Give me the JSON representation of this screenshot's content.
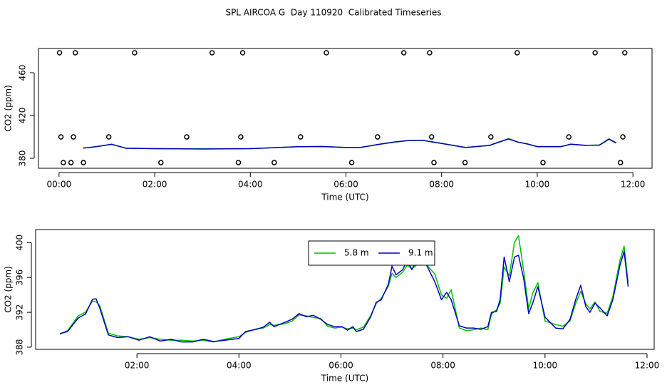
{
  "title": "SPL AIRCOA G  Day 110920  Calibrated Timeseries",
  "chart_data": [
    {
      "type": "line",
      "xlabel": "Time (UTC)",
      "ylabel": "CO2 (ppm)",
      "xlim": [
        -0.43,
        12.4
      ],
      "ylim": [
        370.7,
        482.7
      ],
      "xticks": [
        {
          "value": 0,
          "label": "00:00"
        },
        {
          "value": 2,
          "label": "02:00"
        },
        {
          "value": 4,
          "label": "04:00"
        },
        {
          "value": 6,
          "label": "06:00"
        },
        {
          "value": 8,
          "label": "08:00"
        },
        {
          "value": 10,
          "label": "10:00"
        },
        {
          "value": 12,
          "label": "12:00"
        }
      ],
      "yticks": [
        380,
        420,
        460
      ],
      "series": [
        {
          "style": "points",
          "color": "#000000",
          "x": [
            0.01,
            0.34,
            1.58,
            3.2,
            3.84,
            5.59,
            7.21,
            7.75,
            9.58,
            11.21,
            11.83,
            0.04,
            0.3,
            1.04,
            2.67,
            3.8,
            5.05,
            6.66,
            7.79,
            9.03,
            10.66,
            11.79,
            0.09,
            0.25,
            0.51,
            2.13,
            3.75,
            4.5,
            6.12,
            7.84,
            8.49,
            10.12,
            11.74
          ],
          "values": [
            478.7,
            478.7,
            478.7,
            478.7,
            478.7,
            478.7,
            478.7,
            478.7,
            478.7,
            478.7,
            478.7,
            400,
            400,
            400,
            400,
            400,
            400,
            400,
            400,
            400,
            400,
            400,
            376,
            376,
            376,
            376,
            376,
            376,
            376,
            376,
            376,
            376,
            376
          ]
        },
        {
          "style": "line",
          "color": "#00c000",
          "x": [
            0.5,
            0.8,
            1.1,
            1.4,
            2,
            3,
            4,
            5,
            5.5,
            6,
            6.3,
            6.7,
            7,
            7.3,
            7.6,
            8,
            8.5,
            9,
            9.2,
            9.4,
            9.6,
            9.8,
            10,
            10.5,
            10.7,
            11,
            11.3,
            11.5,
            11.65
          ],
          "values": [
            389.5,
            391,
            393,
            389.5,
            389,
            388.8,
            389,
            390.8,
            391,
            390.2,
            390.2,
            393,
            395,
            396.5,
            396.8,
            394,
            390.2,
            392,
            395,
            398.5,
            395,
            393.5,
            391,
            391,
            393,
            392,
            392.5,
            398.3,
            394.5
          ]
        },
        {
          "style": "line",
          "color": "#0000c0",
          "x": [
            0.5,
            0.8,
            1.1,
            1.4,
            2,
            3,
            4,
            5,
            5.5,
            6,
            6.3,
            6.7,
            7,
            7.3,
            7.6,
            8,
            8.5,
            9,
            9.2,
            9.4,
            9.6,
            9.8,
            10,
            10.5,
            10.7,
            11,
            11.3,
            11.5,
            11.65
          ],
          "values": [
            389.5,
            391,
            393.2,
            389.4,
            389,
            388.7,
            389,
            390.9,
            391,
            390.1,
            390.1,
            393.2,
            395.2,
            396.6,
            396.9,
            393.8,
            390.1,
            392,
            395.3,
            398,
            395.2,
            393.3,
            390.9,
            390.9,
            393.3,
            392.2,
            392.3,
            397.8,
            394.3
          ]
        }
      ]
    },
    {
      "type": "line",
      "xlabel": "Time (UTC)",
      "ylabel": "CO2 (ppm)",
      "xlim": [
        0.014,
        12.14
      ],
      "ylim": [
        387.75,
        401.5
      ],
      "xticks": [
        {
          "value": 2,
          "label": "02:00"
        },
        {
          "value": 4,
          "label": "04:00"
        },
        {
          "value": 6,
          "label": "06:00"
        },
        {
          "value": 8,
          "label": "08:00"
        },
        {
          "value": 10,
          "label": "10:00"
        },
        {
          "value": 12,
          "label": "12:00"
        }
      ],
      "yticks": [
        388,
        392,
        396,
        400
      ],
      "legend": "top-center",
      "series": [
        {
          "name": "5.8 m",
          "style": "line",
          "color": "#00c000",
          "x": [
            0.49,
            0.64,
            0.85,
            0.99,
            1.13,
            1.2,
            1.27,
            1.44,
            1.62,
            1.83,
            2.04,
            2.25,
            2.46,
            2.67,
            2.88,
            3.09,
            3.3,
            3.5,
            3.72,
            4.0,
            4.13,
            4.34,
            4.48,
            4.6,
            4.69,
            4.9,
            5.04,
            5.18,
            5.32,
            5.46,
            5.6,
            5.74,
            5.88,
            6.02,
            6.13,
            6.23,
            6.3,
            6.44,
            6.58,
            6.69,
            6.79,
            6.93,
            7.0,
            7.08,
            7.21,
            7.3,
            7.39,
            7.56,
            7.7,
            7.84,
            7.97,
            8.07,
            8.16,
            8.32,
            8.46,
            8.6,
            8.74,
            8.88,
            8.95,
            9.05,
            9.12,
            9.2,
            9.3,
            9.4,
            9.48,
            9.58,
            9.68,
            9.76,
            9.86,
            10.0,
            10.21,
            10.35,
            10.49,
            10.6,
            10.7,
            10.8,
            10.88,
            10.98,
            11.08,
            11.22,
            11.33,
            11.47,
            11.55,
            11.63
          ],
          "values": [
            389.5,
            389.9,
            391.6,
            392.0,
            393.3,
            393.2,
            392.8,
            389.6,
            389.3,
            389.2,
            388.9,
            389.1,
            388.9,
            388.8,
            388.8,
            388.7,
            388.8,
            388.6,
            388.9,
            389.2,
            389.7,
            390.1,
            390.2,
            390.6,
            390.5,
            390.7,
            391.0,
            391.7,
            391.6,
            391.4,
            391.3,
            390.4,
            390.2,
            390.3,
            390.1,
            390.2,
            390.0,
            390.3,
            391.6,
            393.0,
            393.6,
            395.0,
            396.5,
            396.0,
            396.6,
            397.4,
            397.0,
            397.8,
            397.3,
            396.4,
            394.0,
            393.6,
            394.6,
            390.2,
            389.9,
            390.0,
            390.2,
            390.0,
            391.8,
            392.3,
            393.0,
            397.2,
            396.2,
            400.0,
            400.8,
            396.8,
            392.4,
            394.2,
            395.4,
            391.0,
            390.6,
            390.4,
            391.0,
            393.0,
            394.4,
            393.0,
            392.4,
            393.2,
            392.1,
            391.9,
            393.8,
            398.0,
            399.6,
            395.4
          ]
        },
        {
          "name": "9.1 m",
          "style": "line",
          "color": "#0000c0",
          "x": [
            0.49,
            0.64,
            0.85,
            0.99,
            1.13,
            1.2,
            1.27,
            1.44,
            1.62,
            1.83,
            2.04,
            2.25,
            2.46,
            2.67,
            2.88,
            3.09,
            3.3,
            3.5,
            3.72,
            4.0,
            4.13,
            4.34,
            4.48,
            4.6,
            4.69,
            4.9,
            5.04,
            5.18,
            5.32,
            5.46,
            5.6,
            5.74,
            5.88,
            6.02,
            6.13,
            6.23,
            6.3,
            6.44,
            6.58,
            6.69,
            6.79,
            6.93,
            7.0,
            7.08,
            7.21,
            7.3,
            7.39,
            7.56,
            7.7,
            7.84,
            7.97,
            8.07,
            8.16,
            8.32,
            8.46,
            8.6,
            8.74,
            8.88,
            8.95,
            9.05,
            9.12,
            9.2,
            9.3,
            9.4,
            9.48,
            9.58,
            9.68,
            9.76,
            9.86,
            10.0,
            10.21,
            10.35,
            10.49,
            10.6,
            10.7,
            10.8,
            10.88,
            10.98,
            11.08,
            11.22,
            11.33,
            11.47,
            11.55,
            11.63
          ],
          "values": [
            389.55,
            389.8,
            391.35,
            391.8,
            393.5,
            393.55,
            392.5,
            389.4,
            389.1,
            389.2,
            388.8,
            389.2,
            388.7,
            388.9,
            388.6,
            388.6,
            388.9,
            388.65,
            388.8,
            389.0,
            389.8,
            390.05,
            390.3,
            390.85,
            390.35,
            390.85,
            391.2,
            391.85,
            391.5,
            391.65,
            391.2,
            390.6,
            390.35,
            390.35,
            389.95,
            390.35,
            389.8,
            390.05,
            391.45,
            393.15,
            393.45,
            395.25,
            397.3,
            396.3,
            396.9,
            397.95,
            396.9,
            398.8,
            397.15,
            395.5,
            393.45,
            394.3,
            393.45,
            390.45,
            390.2,
            390.2,
            390.05,
            390.35,
            392.0,
            392.1,
            393.45,
            398.35,
            395.5,
            398.35,
            398.55,
            395.9,
            391.85,
            393.05,
            394.95,
            391.45,
            390.2,
            390.1,
            391.2,
            393.45,
            395.1,
            392.65,
            392.0,
            393.05,
            392.5,
            391.6,
            393.45,
            397.4,
            399.0,
            394.95
          ]
        }
      ]
    }
  ]
}
